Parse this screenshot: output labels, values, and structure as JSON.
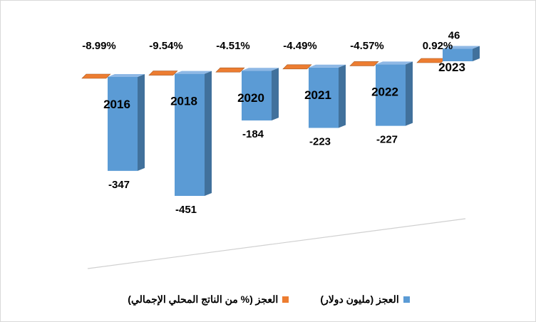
{
  "chart_data": {
    "type": "bar",
    "categories": [
      "2016",
      "2018",
      "2020",
      "2021",
      "2022",
      "2023"
    ],
    "series": [
      {
        "name": "العجز (مليون دولار)",
        "values": [
          -347,
          -451,
          -184,
          -223,
          -227,
          46
        ],
        "labels": [
          "-347",
          "-451",
          "-184",
          "-223",
          "-227",
          "46"
        ]
      },
      {
        "name": "العجز (% من الناتج المحلي الإجمالي)",
        "values": [
          -8.99,
          -9.54,
          -4.51,
          -4.49,
          -4.57,
          0.92
        ],
        "labels": [
          "-8.99%",
          "-9.54%",
          "-4.51%",
          "-4.49%",
          "-4.57%",
          "0.92%"
        ]
      }
    ],
    "colors": {
      "bar_front": "#5b9bd5",
      "bar_side": "#41719c",
      "bar_top": "#8eb8e5",
      "pct_front": "#ed7d31",
      "pct_side": "#a5561e",
      "floor": "#d0d0d0"
    },
    "legend": "bottom",
    "grid": false,
    "three_d": true
  }
}
